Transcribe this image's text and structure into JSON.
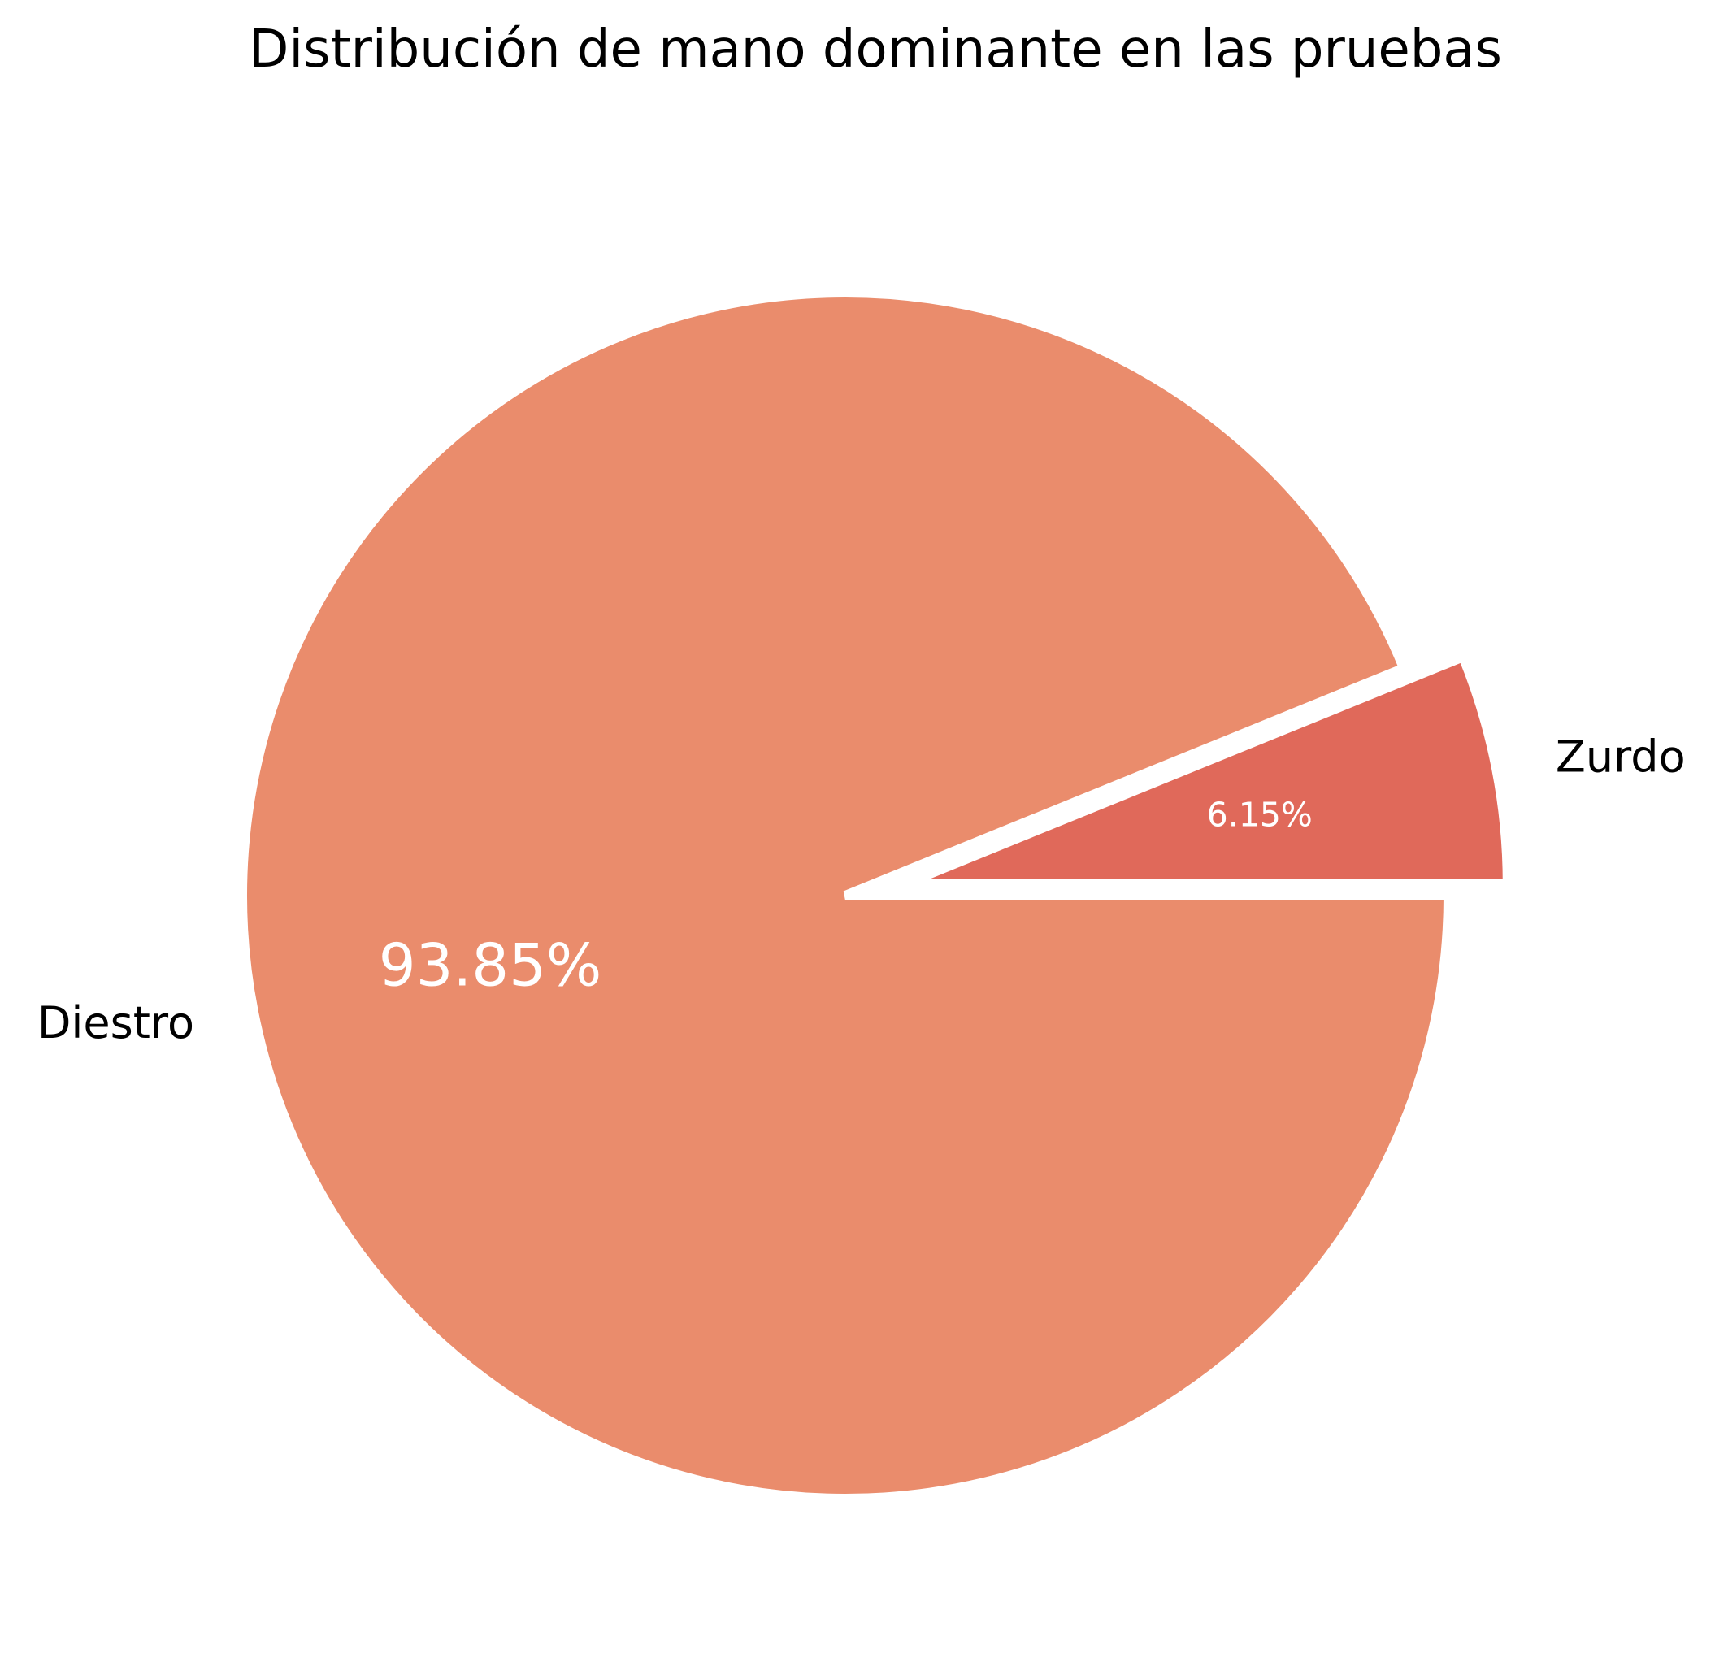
{
  "chart_data": {
    "type": "pie",
    "title": "Distribución de mano dominante en las pruebas",
    "slices": [
      {
        "label": "Zurdo",
        "value": 6.15,
        "pct_label": "6.15%",
        "color": "#e0695a",
        "exploded": true
      },
      {
        "label": "Diestro",
        "value": 93.85,
        "pct_label": "93.85%",
        "color": "#ea8c6c",
        "exploded": false
      }
    ],
    "start_angle_deg": 0,
    "direction": "counterclockwise",
    "edge_color": "#ffffff",
    "legend": false
  }
}
